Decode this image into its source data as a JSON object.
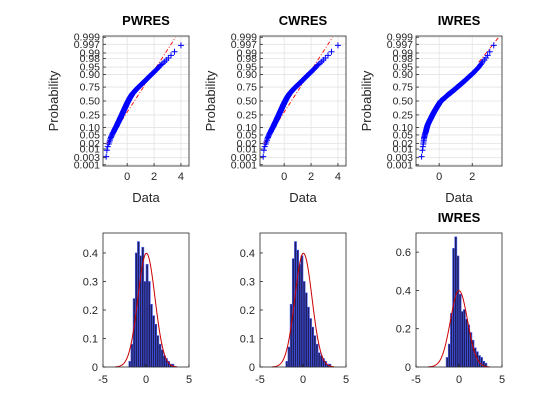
{
  "chart_data": [
    {
      "type": "scatter",
      "subtype": "normal-probability",
      "title": "PWRES",
      "xlabel": "Data",
      "ylabel": "Probability",
      "xlim": [
        -1.8,
        4.6
      ],
      "xticks": [
        0,
        2,
        4
      ],
      "prob_ticks": [
        "0.001",
        "0.003",
        "0.01",
        "0.02",
        "0.05",
        "0.10",
        "0.25",
        "0.50",
        "0.75",
        "0.90",
        "0.95",
        "0.98",
        "0.99",
        "0.997",
        "0.999"
      ],
      "grid": true,
      "marker": "plus",
      "marker_color": "#0000ff",
      "n_points": 200,
      "x": [
        -1.6,
        -1.55,
        -1.5,
        -1.35,
        -1.2,
        -1.0,
        -0.8,
        -0.6,
        -0.4,
        -0.2,
        0.0,
        0.2,
        0.4,
        0.7,
        1.0,
        1.35,
        1.7,
        2.1,
        2.5,
        3.0,
        3.4,
        3.8,
        4.2,
        4.35
      ],
      "p": [
        0.002,
        0.004,
        0.01,
        0.02,
        0.04,
        0.07,
        0.11,
        0.17,
        0.25,
        0.35,
        0.46,
        0.56,
        0.64,
        0.72,
        0.78,
        0.84,
        0.89,
        0.93,
        0.96,
        0.98,
        0.99,
        0.995,
        0.998,
        0.999
      ],
      "ref_line": {
        "x": [
          -1.5,
          3.6
        ],
        "p": [
          0.02,
          0.999
        ],
        "color": "#ff0000",
        "style": "dash-dot"
      }
    },
    {
      "type": "scatter",
      "subtype": "normal-probability",
      "title": "CWRES",
      "xlabel": "Data",
      "ylabel": "Probability",
      "xlim": [
        -1.8,
        4.6
      ],
      "xticks": [
        0,
        2,
        4
      ],
      "prob_ticks": [
        "0.001",
        "0.003",
        "0.01",
        "0.02",
        "0.05",
        "0.10",
        "0.25",
        "0.50",
        "0.75",
        "0.90",
        "0.95",
        "0.98",
        "0.99",
        "0.997",
        "0.999"
      ],
      "grid": true,
      "marker": "plus",
      "marker_color": "#0000ff",
      "n_points": 200,
      "x": [
        -1.6,
        -1.55,
        -1.5,
        -1.35,
        -1.2,
        -1.0,
        -0.8,
        -0.6,
        -0.4,
        -0.2,
        0.0,
        0.2,
        0.4,
        0.7,
        1.0,
        1.35,
        1.7,
        2.1,
        2.5,
        3.0,
        3.4,
        3.8,
        4.2,
        4.35
      ],
      "p": [
        0.002,
        0.004,
        0.01,
        0.02,
        0.04,
        0.07,
        0.11,
        0.17,
        0.25,
        0.35,
        0.46,
        0.56,
        0.64,
        0.72,
        0.78,
        0.84,
        0.89,
        0.93,
        0.96,
        0.98,
        0.99,
        0.995,
        0.998,
        0.999
      ],
      "ref_line": {
        "x": [
          -1.5,
          3.6
        ],
        "p": [
          0.02,
          0.999
        ],
        "color": "#ff0000",
        "style": "dash-dot"
      }
    },
    {
      "type": "scatter",
      "subtype": "normal-probability",
      "title": "IWRES",
      "xlabel": "Data",
      "ylabel": "Probability",
      "xlim": [
        -1.4,
        3.8
      ],
      "xticks": [
        0,
        2
      ],
      "prob_ticks": [
        "0.001",
        "0.003",
        "0.01",
        "0.02",
        "0.05",
        "0.10",
        "0.25",
        "0.50",
        "0.75",
        "0.90",
        "0.95",
        "0.98",
        "0.99",
        "0.997",
        "0.999"
      ],
      "grid": true,
      "marker": "plus",
      "marker_color": "#0000ff",
      "n_points": 200,
      "x": [
        -1.1,
        -1.05,
        -1.0,
        -0.95,
        -0.9,
        -0.8,
        -0.7,
        -0.5,
        -0.3,
        -0.1,
        0.1,
        0.3,
        0.5,
        0.8,
        1.1,
        1.45,
        1.8,
        2.2,
        2.6,
        3.0,
        3.2,
        3.4,
        3.55
      ],
      "p": [
        0.002,
        0.004,
        0.01,
        0.02,
        0.04,
        0.07,
        0.12,
        0.2,
        0.3,
        0.4,
        0.5,
        0.55,
        0.61,
        0.68,
        0.75,
        0.82,
        0.88,
        0.93,
        0.97,
        0.99,
        0.995,
        0.998,
        0.999
      ],
      "ref_line": {
        "x": [
          2.4,
          3.6
        ],
        "p": [
          0.97,
          0.999
        ],
        "color": "#ff0000",
        "style": "dash-dot"
      }
    },
    {
      "type": "bar",
      "subtype": "histogram",
      "title": "",
      "xlim": [
        -5,
        5
      ],
      "ylim": [
        0,
        0.47
      ],
      "xticks": [
        -5,
        0,
        5
      ],
      "yticks": [
        0,
        0.1,
        0.2,
        0.3,
        0.4
      ],
      "bin_width": 0.25,
      "bin_start": -2.0,
      "values": [
        0.02,
        0.08,
        0.24,
        0.4,
        0.44,
        0.39,
        0.42,
        0.3,
        0.36,
        0.3,
        0.22,
        0.18,
        0.15,
        0.11,
        0.08,
        0.06,
        0.04,
        0.03,
        0.02,
        0.01,
        0.01
      ],
      "bar_color": "#1f1f5c",
      "edge_color": "#4a5fff",
      "curve": {
        "type": "normal-pdf",
        "mean": 0.05,
        "sd": 1.0,
        "color": "#cc0000"
      }
    },
    {
      "type": "bar",
      "subtype": "histogram",
      "title": "",
      "xlim": [
        -5,
        5
      ],
      "ylim": [
        0,
        0.47
      ],
      "xticks": [
        -5,
        0,
        5
      ],
      "yticks": [
        0,
        0.1,
        0.2,
        0.3,
        0.4
      ],
      "bin_width": 0.25,
      "bin_start": -2.0,
      "values": [
        0.02,
        0.07,
        0.22,
        0.38,
        0.44,
        0.41,
        0.36,
        0.39,
        0.3,
        0.26,
        0.21,
        0.17,
        0.14,
        0.11,
        0.08,
        0.05,
        0.04,
        0.03,
        0.02,
        0.01,
        0.01
      ],
      "bar_color": "#1f1f5c",
      "edge_color": "#4a5fff",
      "curve": {
        "type": "normal-pdf",
        "mean": 0.05,
        "sd": 1.0,
        "color": "#cc0000"
      }
    },
    {
      "type": "bar",
      "subtype": "histogram",
      "title": "IWRES",
      "xlim": [
        -5,
        5
      ],
      "ylim": [
        0,
        0.7
      ],
      "xticks": [
        -5,
        0,
        5
      ],
      "yticks": [
        0,
        0.2,
        0.4,
        0.6
      ],
      "bin_width": 0.25,
      "bin_start": -1.5,
      "values": [
        0.05,
        0.12,
        0.28,
        0.62,
        0.68,
        0.58,
        0.38,
        0.29,
        0.3,
        0.25,
        0.22,
        0.18,
        0.14,
        0.1,
        0.08,
        0.06,
        0.05,
        0.03,
        0.02
      ],
      "bar_color": "#1f1f5c",
      "edge_color": "#4a5fff",
      "curve": {
        "type": "normal-pdf",
        "mean": 0.0,
        "sd": 1.0,
        "color": "#cc0000"
      }
    }
  ]
}
